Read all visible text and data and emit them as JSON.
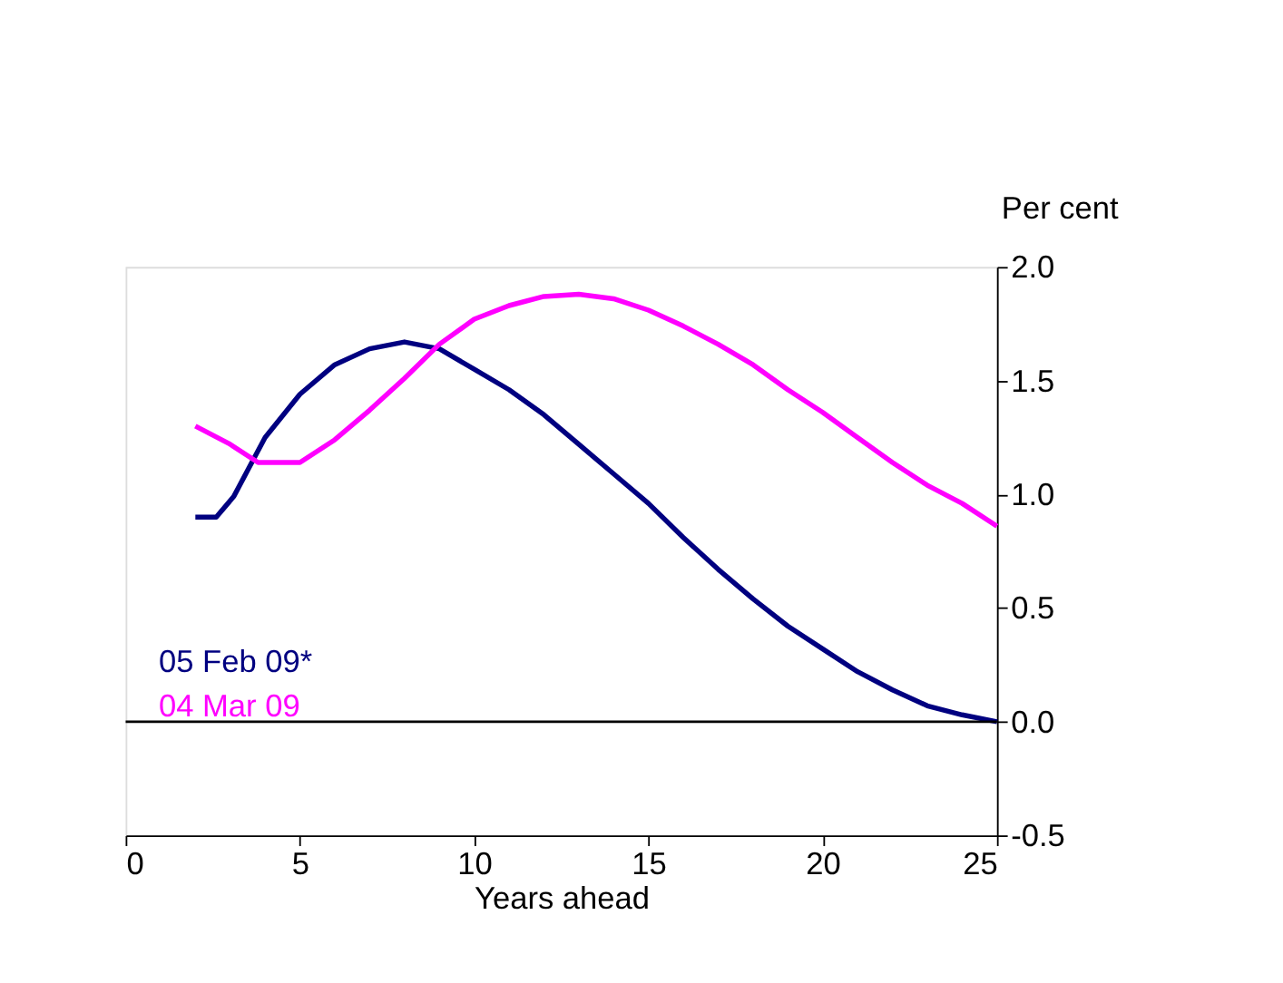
{
  "chart_data": {
    "type": "line",
    "xlabel": "Years ahead",
    "ylabel": "Per cent",
    "xlim": [
      0,
      25
    ],
    "xticks": [
      0,
      5,
      10,
      15,
      20,
      25
    ],
    "ylim": [
      -0.5,
      2.0
    ],
    "yticks": [
      {
        "value": 2.0,
        "label": "2.0"
      },
      {
        "value": 1.5,
        "label": "1.5"
      },
      {
        "value": 1.0,
        "label": "1.0"
      },
      {
        "value": 0.5,
        "label": "0.5"
      },
      {
        "value": 0.0,
        "label": "0.0"
      },
      {
        "value": -0.5,
        "label": "-0.5"
      }
    ],
    "grid": false,
    "legend": "bottom left",
    "marker": "none",
    "line_style": "solid",
    "ref_lines": [
      {
        "axis": "y",
        "value": 0,
        "color": "#000000"
      }
    ],
    "series": [
      {
        "name": "05 Feb 09*",
        "color": "#000080",
        "x": [
          2,
          2.6,
          3.1,
          4,
          5,
          6,
          7,
          8,
          9,
          10,
          11,
          12,
          13,
          14,
          15,
          16,
          17,
          18,
          19,
          20,
          21,
          22,
          23,
          24,
          25
        ],
        "values": [
          0.9,
          0.9,
          0.99,
          1.25,
          1.44,
          1.57,
          1.64,
          1.67,
          1.64,
          1.55,
          1.46,
          1.35,
          1.22,
          1.09,
          0.96,
          0.81,
          0.67,
          0.54,
          0.42,
          0.32,
          0.22,
          0.14,
          0.07,
          0.03,
          0.0
        ]
      },
      {
        "name": "04 Mar 09",
        "color": "#ff00ff",
        "x": [
          2,
          3,
          3.8,
          4.5,
          5,
          6,
          7,
          8,
          9,
          10,
          11,
          12,
          13,
          14,
          15,
          16,
          17,
          18,
          19,
          20,
          21,
          22,
          23,
          24,
          25
        ],
        "values": [
          1.3,
          1.22,
          1.14,
          1.14,
          1.14,
          1.24,
          1.37,
          1.51,
          1.66,
          1.77,
          1.83,
          1.87,
          1.88,
          1.86,
          1.81,
          1.74,
          1.66,
          1.57,
          1.46,
          1.36,
          1.25,
          1.14,
          1.04,
          0.96,
          0.86
        ]
      }
    ]
  }
}
